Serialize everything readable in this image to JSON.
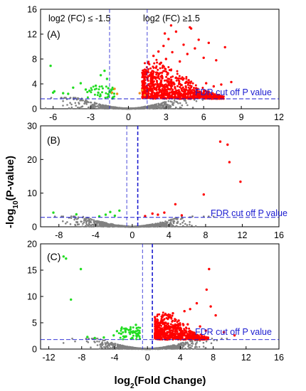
{
  "figure": {
    "xlabel": "log2(Fold Change)",
    "ylabel": "-log10(P-value)",
    "annotation_left": "log2 (FC) ≤ -1.5",
    "annotation_right": "log2 (FC) ≥1.5",
    "fdr_label": "FDR cut off P value"
  },
  "colors": {
    "up": "#ff0000",
    "down": "#22dd22",
    "nonsig": "#808080",
    "near_threshold": "#f28c1a",
    "threshold_line": "#1b1bd0"
  },
  "chart_data": [
    {
      "type": "scatter",
      "panel_label": "(A)",
      "xlim": [
        -7,
        12
      ],
      "ylim": [
        0,
        16
      ],
      "x_ticks": [
        -6,
        -3,
        0,
        3,
        6,
        9,
        12
      ],
      "y_ticks": [
        0,
        4,
        8,
        12,
        16
      ],
      "vlines": [
        -1.5,
        1.5
      ],
      "fdr_y": 1.6,
      "grid": false,
      "series": [
        {
          "role": "up",
          "points": [
            [
              1.2,
              5.1
            ],
            [
              1.4,
              6.2
            ],
            [
              1.6,
              7.3
            ],
            [
              1.8,
              5.8
            ],
            [
              2.0,
              8.5
            ],
            [
              2.2,
              6.6
            ],
            [
              2.4,
              9.2
            ],
            [
              2.6,
              7.4
            ],
            [
              2.8,
              10.1
            ],
            [
              3.0,
              8.0
            ],
            [
              3.2,
              11.2
            ],
            [
              3.5,
              9.1
            ],
            [
              3.8,
              12.4
            ],
            [
              4.1,
              7.6
            ],
            [
              4.4,
              10.3
            ],
            [
              4.7,
              8.8
            ],
            [
              5.0,
              12.9
            ],
            [
              5.3,
              9.7
            ],
            [
              5.6,
              11.1
            ],
            [
              6.0,
              8.2
            ],
            [
              6.4,
              10.6
            ],
            [
              7.0,
              7.8
            ],
            [
              7.7,
              9.9
            ],
            [
              3.4,
              13.4
            ],
            [
              2.9,
              12.1
            ],
            [
              4.9,
              13.1
            ],
            [
              1.5,
              3.2
            ],
            [
              1.9,
              4.0
            ],
            [
              2.3,
              3.6
            ],
            [
              2.7,
              4.9
            ],
            [
              3.1,
              5.5
            ],
            [
              3.6,
              4.2
            ],
            [
              4.2,
              3.8
            ],
            [
              4.8,
              4.6
            ],
            [
              5.4,
              3.3
            ],
            [
              6.2,
              4.1
            ],
            [
              6.8,
              3.6
            ],
            [
              7.4,
              3.9
            ],
            [
              8.2,
              4.3
            ],
            [
              1.3,
              2.4
            ],
            [
              2.1,
              2.2
            ],
            [
              3.3,
              2.6
            ],
            [
              4.5,
              2.3
            ],
            [
              5.7,
              2.5
            ]
          ]
        },
        {
          "role": "down",
          "points": [
            [
              -6.2,
              6.9
            ],
            [
              -5.9,
              2.8
            ],
            [
              -5.2,
              2.5
            ],
            [
              -4.4,
              3.4
            ],
            [
              -3.8,
              4.1
            ],
            [
              -3.1,
              2.9
            ],
            [
              -2.6,
              3.7
            ],
            [
              -2.2,
              5.4
            ],
            [
              -1.9,
              6.1
            ],
            [
              -1.7,
              4.8
            ],
            [
              -2.4,
              2.6
            ],
            [
              -3.4,
              3.1
            ],
            [
              -4.8,
              2.4
            ],
            [
              -6.0,
              2.6
            ],
            [
              -1.6,
              3.3
            ]
          ]
        },
        {
          "role": "near_threshold",
          "points": [
            [
              -1.3,
              2.6
            ],
            [
              -1.1,
              3.2
            ],
            [
              -0.9,
              2.4
            ],
            [
              0.9,
              2.5
            ],
            [
              1.1,
              3.0
            ],
            [
              1.3,
              2.2
            ]
          ]
        }
      ]
    },
    {
      "type": "scatter",
      "panel_label": "(B)",
      "xlim": [
        -10,
        16
      ],
      "ylim": [
        0,
        30
      ],
      "x_ticks": [
        -8,
        -4,
        0,
        4,
        8,
        12,
        16
      ],
      "y_ticks": [
        0,
        10,
        20,
        30
      ],
      "vlines": [
        -0.6,
        0.6
      ],
      "fdr_y": 2.8,
      "grid": false,
      "series": [
        {
          "role": "up",
          "points": [
            [
              9.6,
              25.3
            ],
            [
              10.4,
              24.4
            ],
            [
              11.8,
              13.4
            ],
            [
              10.6,
              19.2
            ],
            [
              7.8,
              9.6
            ],
            [
              4.7,
              6.7
            ],
            [
              3.5,
              4.2
            ],
            [
              2.8,
              3.6
            ],
            [
              1.4,
              3.2
            ],
            [
              2.2,
              3.9
            ],
            [
              5.4,
              3.4
            ]
          ]
        },
        {
          "role": "down",
          "points": [
            [
              -8.6,
              4.2
            ],
            [
              -6.1,
              3.7
            ],
            [
              -2.4,
              4.4
            ],
            [
              -1.9,
              3.3
            ],
            [
              -2.9,
              3.6
            ],
            [
              -1.4,
              4.8
            ],
            [
              -3.6,
              3.1
            ]
          ]
        }
      ]
    },
    {
      "type": "scatter",
      "panel_label": "(C)",
      "xlim": [
        -13,
        16
      ],
      "ylim": [
        0,
        20
      ],
      "x_ticks": [
        -12,
        -8,
        -4,
        0,
        4,
        8,
        12,
        16
      ],
      "y_ticks": [
        0,
        5,
        10,
        15,
        20
      ],
      "vlines": [
        -0.6,
        0.6
      ],
      "fdr_y": 1.8,
      "grid": false,
      "series": [
        {
          "role": "up",
          "points": [
            [
              7.5,
              15.2
            ],
            [
              7.2,
              11.3
            ],
            [
              6.0,
              8.7
            ],
            [
              7.7,
              8.1
            ],
            [
              4.5,
              7.2
            ],
            [
              5.2,
              7.6
            ],
            [
              3.1,
              6.8
            ],
            [
              8.3,
              6.4
            ],
            [
              2.6,
              6.0
            ],
            [
              3.8,
              5.4
            ],
            [
              1.8,
              5.1
            ],
            [
              4.9,
              4.7
            ],
            [
              6.4,
              4.3
            ],
            [
              2.2,
              3.8
            ],
            [
              3.4,
              3.3
            ],
            [
              5.7,
              3.1
            ],
            [
              7.1,
              3.5
            ],
            [
              1.4,
              2.8
            ],
            [
              2.9,
              2.6
            ],
            [
              4.2,
              2.3
            ],
            [
              9.3,
              3.2
            ],
            [
              10.6,
              2.6
            ]
          ]
        },
        {
          "role": "down",
          "points": [
            [
              -10.2,
              17.6
            ],
            [
              -9.9,
              17.2
            ],
            [
              -8.1,
              15.2
            ],
            [
              -9.3,
              9.4
            ],
            [
              -1.4,
              4.6
            ],
            [
              -2.1,
              3.7
            ],
            [
              -1.8,
              3.1
            ],
            [
              -3.2,
              2.9
            ],
            [
              -2.6,
              2.4
            ],
            [
              -4.1,
              2.6
            ],
            [
              -5.3,
              2.2
            ],
            [
              -6.4,
              2.1
            ],
            [
              -7.3,
              2.3
            ],
            [
              -1.2,
              2.6
            ],
            [
              -3.7,
              3.4
            ]
          ]
        }
      ]
    }
  ]
}
